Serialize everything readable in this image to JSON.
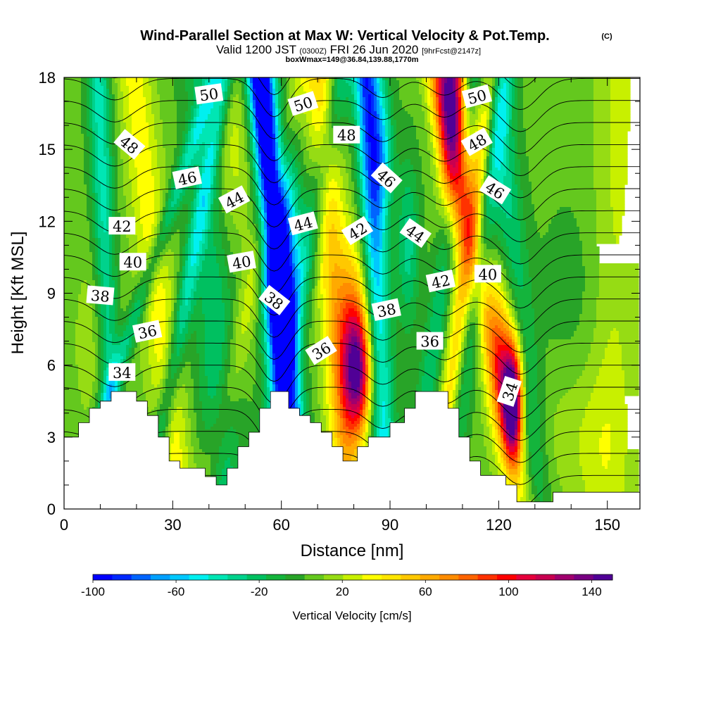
{
  "chart_data": {
    "type": "heatmap",
    "title": "Wind-Parallel Section at Max W: Vertical Velocity & Pot.Temp.",
    "title_mark": "(C)",
    "subtitle": {
      "valid": "Valid 1200 JST",
      "utc": "(0300Z)",
      "date": "FRI 26 Jun 2020",
      "forecast": "[9hrFcst@2147z]"
    },
    "box_info": "boxWmax=149@36.84,139.88,1770m",
    "xlabel": "Distance [nm]",
    "ylabel": "Height [Kft MSL]",
    "xlim": [
      0,
      159
    ],
    "ylim": [
      0,
      18
    ],
    "x_ticks": [
      0,
      30,
      60,
      90,
      120,
      150
    ],
    "y_ticks": [
      0,
      3,
      6,
      9,
      12,
      15,
      18
    ],
    "colorbar": {
      "title": "Vertical Velocity [cm/s]",
      "tick_labels": [
        "-100",
        "-60",
        "-20",
        "20",
        "60",
        "100",
        "140"
      ],
      "tick_values": [
        -100,
        -60,
        -20,
        20,
        60,
        100,
        140
      ],
      "range": [
        -100,
        150
      ],
      "colors": [
        "#0000ff",
        "#0028ff",
        "#0064ff",
        "#00a0ff",
        "#00c8ff",
        "#00f0f0",
        "#00e6b4",
        "#00d28c",
        "#00c060",
        "#14b43c",
        "#28a428",
        "#64c81e",
        "#96dc14",
        "#c8f000",
        "#ffff00",
        "#ffe600",
        "#ffc800",
        "#ffaa00",
        "#ff8c00",
        "#ff6400",
        "#ff3200",
        "#ff0000",
        "#e6003c",
        "#c80050",
        "#a0006e",
        "#780082",
        "#500096"
      ]
    },
    "terrain_profile": [
      [
        0,
        3
      ],
      [
        4,
        3
      ],
      [
        4,
        3.6
      ],
      [
        7,
        3.6
      ],
      [
        7,
        4.2
      ],
      [
        10,
        4.2
      ],
      [
        10,
        4.5
      ],
      [
        13,
        4.5
      ],
      [
        13,
        4.9
      ],
      [
        20,
        4.9
      ],
      [
        20,
        4.5
      ],
      [
        23,
        4.5
      ],
      [
        23,
        3.9
      ],
      [
        26,
        3.9
      ],
      [
        26,
        3
      ],
      [
        29,
        3
      ],
      [
        29,
        2
      ],
      [
        32,
        2
      ],
      [
        32,
        1.7
      ],
      [
        39,
        1.7
      ],
      [
        39,
        1.35
      ],
      [
        42,
        1.35
      ],
      [
        42,
        1
      ],
      [
        45,
        1
      ],
      [
        45,
        1.7
      ],
      [
        48,
        1.7
      ],
      [
        48,
        2.6
      ],
      [
        51,
        2.6
      ],
      [
        51,
        3.2
      ],
      [
        54,
        3.2
      ],
      [
        54,
        4.2
      ],
      [
        57,
        4.2
      ],
      [
        57,
        4.9
      ],
      [
        62,
        4.9
      ],
      [
        62,
        4.2
      ],
      [
        65,
        4.2
      ],
      [
        65,
        3.9
      ],
      [
        68,
        3.9
      ],
      [
        68,
        3.6
      ],
      [
        71,
        3.6
      ],
      [
        71,
        3.2
      ],
      [
        74,
        3.2
      ],
      [
        74,
        2.6
      ],
      [
        77,
        2.6
      ],
      [
        77,
        2
      ],
      [
        81,
        2
      ],
      [
        81,
        2.6
      ],
      [
        84,
        2.6
      ],
      [
        84,
        3
      ],
      [
        90,
        3
      ],
      [
        90,
        3.6
      ],
      [
        94,
        3.6
      ],
      [
        94,
        4.2
      ],
      [
        97,
        4.2
      ],
      [
        97,
        4.9
      ],
      [
        106,
        4.9
      ],
      [
        106,
        4.2
      ],
      [
        109,
        4.2
      ],
      [
        109,
        3
      ],
      [
        112,
        3
      ],
      [
        112,
        2
      ],
      [
        115,
        2
      ],
      [
        115,
        1.4
      ],
      [
        122,
        1.4
      ],
      [
        122,
        1
      ],
      [
        125,
        1
      ],
      [
        125,
        0.3
      ],
      [
        135,
        0.3
      ],
      [
        135,
        0.7
      ],
      [
        159,
        0.7
      ],
      [
        159,
        0
      ]
    ],
    "w_field": {
      "units": "cm/s",
      "background": 5,
      "features": [
        {
          "x0": 2,
          "slope": 2.2,
          "sigma": 1.8,
          "amp": -35
        },
        {
          "x0": 14,
          "slope": -0.25,
          "sigma": 2.2,
          "amp": -45
        },
        {
          "x0": 23,
          "slope": 1.2,
          "sigma": 1.8,
          "amp": -40
        },
        {
          "x0": 32,
          "slope": -0.7,
          "sigma": 3.5,
          "amp": 30
        },
        {
          "x0": 38,
          "slope": 1.5,
          "sigma": 2.5,
          "amp": 20
        },
        {
          "x0": 44,
          "slope": -0.3,
          "sigma": 4,
          "amp": -30
        },
        {
          "x0": 53,
          "slope": 1.3,
          "sigma": 2.5,
          "amp": -35
        },
        {
          "x0": 65,
          "slope": -0.6,
          "sigma": 2.6,
          "amp": -90,
          "gamp": -25
        },
        {
          "x0": 78,
          "slope": -0.4,
          "sigma": 3,
          "amp": 45
        },
        {
          "x0": 89,
          "slope": -0.3,
          "sigma": 2.5,
          "amp": -55,
          "gamp": -20
        },
        {
          "x0": 96,
          "slope": 0.9,
          "sigma": 2.2,
          "amp": -30
        },
        {
          "x0": 105,
          "slope": 0.9,
          "sigma": 2.2,
          "amp": -40
        },
        {
          "x0": 103,
          "slope": 0.85,
          "sigma": 2.2,
          "amp": 55
        },
        {
          "x0": 128,
          "slope": -1.4,
          "sigma": 2.8,
          "amp": 40
        },
        {
          "x0": 130,
          "slope": -0.6,
          "sigma": 3,
          "amp": -35
        },
        {
          "x0": 150,
          "slope": 0.2,
          "sigma": 5,
          "amp": 18
        }
      ],
      "jets": [
        {
          "x": 81,
          "y": 5.6,
          "sx": 2.8,
          "sy": 1.8,
          "amp": 110
        },
        {
          "x": 80,
          "y": 8,
          "sx": 3.2,
          "sy": 2.5,
          "amp": 50
        },
        {
          "x": 108,
          "y": 15.5,
          "sx": 2.6,
          "sy": 2.8,
          "amp": 100
        },
        {
          "x": 106,
          "y": 18.5,
          "sx": 2.6,
          "sy": 2,
          "amp": 70
        },
        {
          "x": 124,
          "y": 4.6,
          "sx": 2,
          "sy": 1.7,
          "amp": 140
        },
        {
          "x": 121,
          "y": 6.5,
          "sx": 3,
          "sy": 2.6,
          "amp": 55
        },
        {
          "x": 58,
          "y": 8.5,
          "sx": 2.5,
          "sy": 2.5,
          "amp": -50
        },
        {
          "x": 62,
          "y": 12,
          "sx": 2.5,
          "sy": 3,
          "amp": -45
        },
        {
          "x": 88,
          "y": 15,
          "sx": 2.2,
          "sy": 2,
          "amp": -40
        },
        {
          "x": 95,
          "y": 11,
          "sx": 2.2,
          "sy": 2.5,
          "amp": -35
        },
        {
          "x": 45,
          "y": 15,
          "sx": 5,
          "sy": 3,
          "amp": 25
        },
        {
          "x": 10,
          "y": 7,
          "sx": 5,
          "sy": 3,
          "amp": 15
        },
        {
          "x": 142,
          "y": 3,
          "sx": 9,
          "sy": 2.2,
          "amp": 12
        },
        {
          "x": 142,
          "y": 9,
          "sx": 8,
          "sy": 3,
          "amp": -8
        }
      ]
    },
    "theta_field": {
      "units": "K",
      "levels_from": 33,
      "levels_to": 52,
      "waves": [
        {
          "x": 14,
          "amp": -0.9,
          "sigma": 5
        },
        {
          "x": 58,
          "amp": -1.6,
          "sigma": 4
        },
        {
          "x": 88,
          "amp": -0.8,
          "sigma": 4
        },
        {
          "x": 105,
          "amp": -0.7,
          "sigma": 4
        },
        {
          "x": 126,
          "amp": -1.3,
          "sigma": 5
        }
      ]
    },
    "contour_labels": [
      {
        "text": "50",
        "x": 40,
        "y": 17.3,
        "angle": -8
      },
      {
        "text": "50",
        "x": 66,
        "y": 16.9,
        "angle": -18
      },
      {
        "text": "50",
        "x": 114,
        "y": 17.2,
        "angle": -15
      },
      {
        "text": "48",
        "x": 18,
        "y": 15.2,
        "angle": 40
      },
      {
        "text": "48",
        "x": 78,
        "y": 15.6,
        "angle": 0
      },
      {
        "text": "48",
        "x": 114,
        "y": 15.3,
        "angle": -30
      },
      {
        "text": "46",
        "x": 34,
        "y": 13.8,
        "angle": -12
      },
      {
        "text": "46",
        "x": 89,
        "y": 13.8,
        "angle": 42
      },
      {
        "text": "46",
        "x": 119,
        "y": 13.3,
        "angle": 32
      },
      {
        "text": "44",
        "x": 47,
        "y": 12.9,
        "angle": -28
      },
      {
        "text": "44",
        "x": 66,
        "y": 11.9,
        "angle": -15
      },
      {
        "text": "44",
        "x": 97,
        "y": 11.5,
        "angle": 35
      },
      {
        "text": "42",
        "x": 16,
        "y": 11.8,
        "angle": 0
      },
      {
        "text": "42",
        "x": 81,
        "y": 11.6,
        "angle": -32
      },
      {
        "text": "42",
        "x": 104,
        "y": 9.5,
        "angle": -12
      },
      {
        "text": "40",
        "x": 19,
        "y": 10.3,
        "angle": 0
      },
      {
        "text": "40",
        "x": 49,
        "y": 10.3,
        "angle": -10
      },
      {
        "text": "40",
        "x": 117,
        "y": 9.8,
        "angle": 0
      },
      {
        "text": "38",
        "x": 10,
        "y": 8.9,
        "angle": 5
      },
      {
        "text": "38",
        "x": 58,
        "y": 8.7,
        "angle": 38
      },
      {
        "text": "38",
        "x": 89,
        "y": 8.3,
        "angle": -12
      },
      {
        "text": "36",
        "x": 23,
        "y": 7.4,
        "angle": -12
      },
      {
        "text": "36",
        "x": 71,
        "y": 6.6,
        "angle": -32
      },
      {
        "text": "36",
        "x": 101,
        "y": 7,
        "angle": 0
      },
      {
        "text": "34",
        "x": 16,
        "y": 5.7,
        "angle": 0
      },
      {
        "text": "34",
        "x": 123,
        "y": 4.9,
        "angle": -72
      }
    ]
  }
}
